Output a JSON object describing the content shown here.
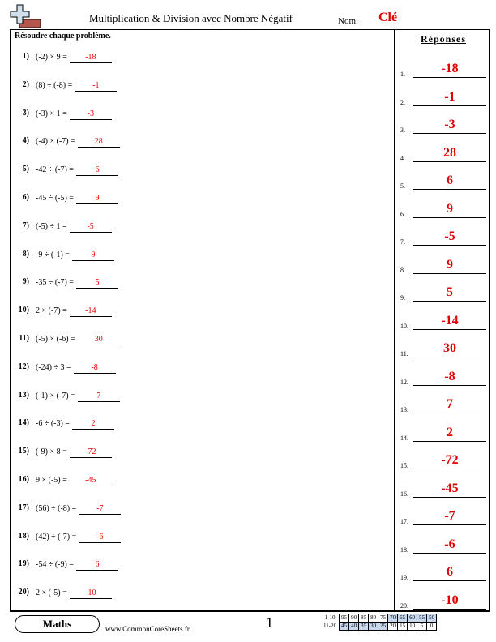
{
  "header": {
    "title": "Multiplication & Division avec Nombre Négatif",
    "name_label": "Nom:",
    "name_value": "Clé",
    "logo_icon": "plus-minus-logo-icon"
  },
  "instructions": "Résoudre chaque problème.",
  "problems": [
    {
      "num": "1)",
      "expr": "(-2) × 9 =",
      "answer": "-18"
    },
    {
      "num": "2)",
      "expr": "(8) ÷ (-8) =",
      "answer": "-1"
    },
    {
      "num": "3)",
      "expr": "(-3) × 1 =",
      "answer": "-3"
    },
    {
      "num": "4)",
      "expr": "(-4) × (-7) =",
      "answer": "28"
    },
    {
      "num": "5)",
      "expr": "-42 ÷ (-7) =",
      "answer": "6"
    },
    {
      "num": "6)",
      "expr": "-45 ÷ (-5) =",
      "answer": "9"
    },
    {
      "num": "7)",
      "expr": "(-5) ÷ 1 =",
      "answer": "-5"
    },
    {
      "num": "8)",
      "expr": "-9 ÷ (-1) =",
      "answer": "9"
    },
    {
      "num": "9)",
      "expr": "-35 ÷ (-7) =",
      "answer": "5"
    },
    {
      "num": "10)",
      "expr": "2 × (-7) =",
      "answer": "-14"
    },
    {
      "num": "11)",
      "expr": "(-5) × (-6) =",
      "answer": "30"
    },
    {
      "num": "12)",
      "expr": "(-24) ÷ 3 =",
      "answer": "-8"
    },
    {
      "num": "13)",
      "expr": "(-1) × (-7) =",
      "answer": "7"
    },
    {
      "num": "14)",
      "expr": "-6 ÷ (-3) =",
      "answer": "2"
    },
    {
      "num": "15)",
      "expr": "(-9) × 8 =",
      "answer": "-72"
    },
    {
      "num": "16)",
      "expr": "9 × (-5) =",
      "answer": "-45"
    },
    {
      "num": "17)",
      "expr": "(56) ÷ (-8) =",
      "answer": "-7"
    },
    {
      "num": "18)",
      "expr": "(42) ÷ (-7) =",
      "answer": "-6"
    },
    {
      "num": "19)",
      "expr": "-54 ÷ (-9) =",
      "answer": "6"
    },
    {
      "num": "20)",
      "expr": "2 × (-5) =",
      "answer": "-10"
    }
  ],
  "answers": {
    "title": "Réponses",
    "items": [
      {
        "label": "1.",
        "value": "-18"
      },
      {
        "label": "2.",
        "value": "-1"
      },
      {
        "label": "3.",
        "value": "-3"
      },
      {
        "label": "4.",
        "value": "28"
      },
      {
        "label": "5.",
        "value": "6"
      },
      {
        "label": "6.",
        "value": "9"
      },
      {
        "label": "7.",
        "value": "-5"
      },
      {
        "label": "8.",
        "value": "9"
      },
      {
        "label": "9.",
        "value": "5"
      },
      {
        "label": "10.",
        "value": "-14"
      },
      {
        "label": "11.",
        "value": "30"
      },
      {
        "label": "12.",
        "value": "-8"
      },
      {
        "label": "13.",
        "value": "7"
      },
      {
        "label": "14.",
        "value": "2"
      },
      {
        "label": "15.",
        "value": "-72"
      },
      {
        "label": "16.",
        "value": "-45"
      },
      {
        "label": "17.",
        "value": "-7"
      },
      {
        "label": "18.",
        "value": "-6"
      },
      {
        "label": "19.",
        "value": "6"
      },
      {
        "label": "20.",
        "value": "-10"
      }
    ]
  },
  "footer": {
    "subject": "Maths",
    "website": "www.CommonCoreSheets.fr",
    "page": "1",
    "score_rows": [
      {
        "label": "1-10",
        "cells": [
          "95",
          "90",
          "85",
          "80",
          "75",
          "70",
          "65",
          "60",
          "55",
          "50"
        ]
      },
      {
        "label": "11-20",
        "cells": [
          "45",
          "40",
          "35",
          "30",
          "25",
          "20",
          "15",
          "10",
          "5",
          "0"
        ]
      }
    ],
    "shade_color": "#c7d7ee"
  },
  "colors": {
    "answer_red": "#e00000"
  }
}
